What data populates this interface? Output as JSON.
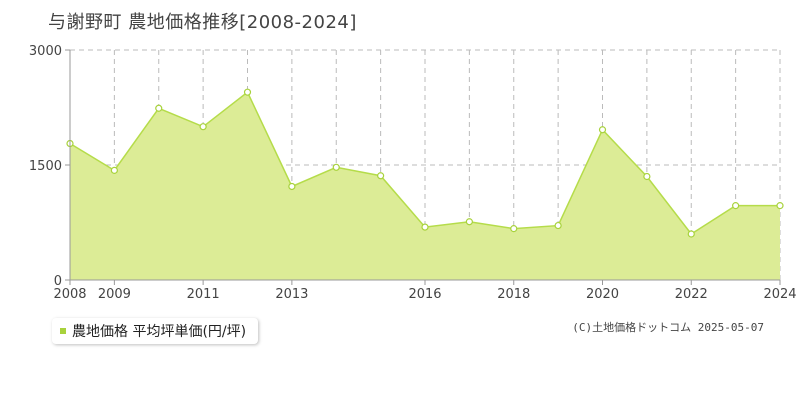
{
  "title": "与謝野町 農地価格推移[2008-2024]",
  "legend": {
    "label": "農地価格 平均坪単価(円/坪)"
  },
  "copyright": "(C)土地価格ドットコム 2025-05-07",
  "colors": {
    "fill": "#dcec96",
    "line": "#b5dc4a",
    "marker": "#a8d23c",
    "grid": "#bbbbbb",
    "axis": "#999999",
    "band": "#f6f6f8"
  },
  "chart_data": {
    "type": "area",
    "title": "与謝野町 農地価格推移[2008-2024]",
    "xlabel": "",
    "ylabel": "",
    "xlim": [
      2008,
      2024
    ],
    "ylim": [
      0,
      3000
    ],
    "yticks": [
      0,
      1500,
      3000
    ],
    "xticks": [
      2008,
      2009,
      2011,
      2013,
      2016,
      2018,
      2020,
      2022,
      2024
    ],
    "grid": true,
    "legend_position": "bottom-left",
    "series": [
      {
        "name": "農地価格 平均坪単価(円/坪)",
        "x": [
          2008,
          2009,
          2010,
          2011,
          2012,
          2013,
          2014,
          2015,
          2016,
          2017,
          2018,
          2019,
          2020,
          2021,
          2022,
          2023,
          2024
        ],
        "values": [
          1780,
          1430,
          2240,
          2000,
          2450,
          1220,
          1470,
          1360,
          690,
          760,
          670,
          710,
          1960,
          1350,
          600,
          970,
          970
        ]
      }
    ]
  }
}
